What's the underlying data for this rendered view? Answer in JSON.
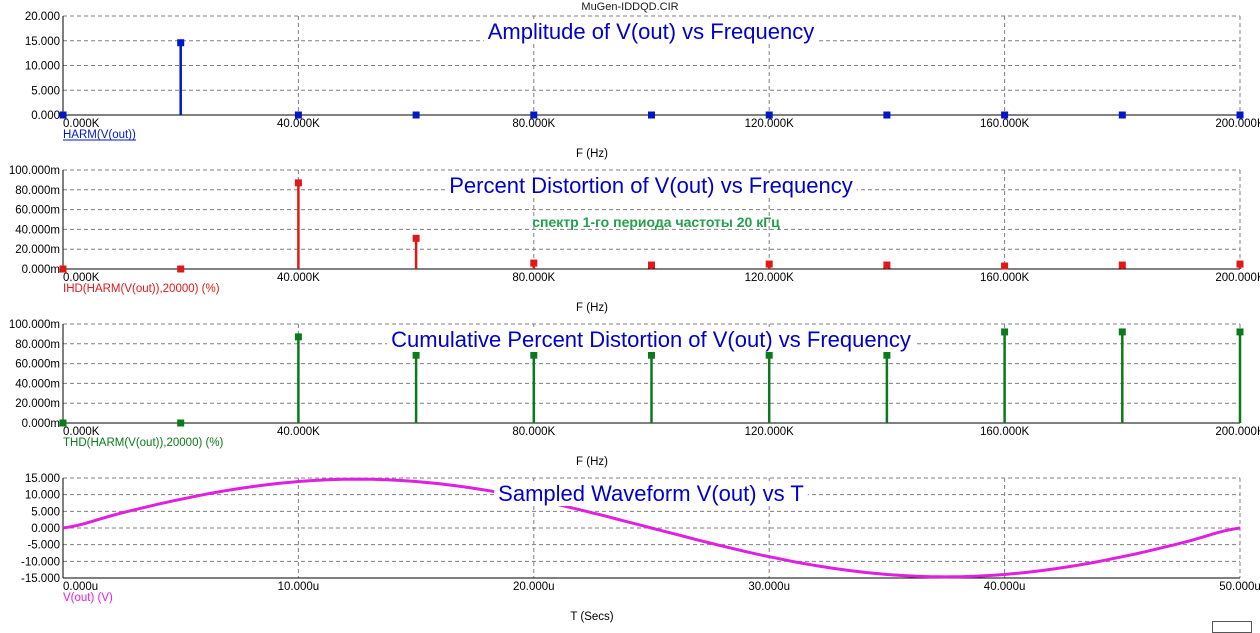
{
  "window": {
    "file_title": "MuGen-IDDQD.CIR"
  },
  "colors": {
    "background": "#ffffff",
    "grid": "#7f7f7f",
    "title_blue": "#0000c8",
    "annotation_green": "#23a04a",
    "axis_text": "#000000"
  },
  "chart_data": [
    {
      "type": "bar",
      "title": "Amplitude of V(out) vs Frequency",
      "xlabel": "F (Hz)",
      "series_label": "HARM(V(out))",
      "color": "#0018c8",
      "x_unit": "Hz",
      "xlim": [
        0,
        200000
      ],
      "ylim": [
        0,
        20
      ],
      "x_ticks": [
        0,
        40000,
        80000,
        120000,
        160000,
        200000
      ],
      "x_tick_labels": [
        "0.000K",
        "40.000K",
        "80.000K",
        "120.000K",
        "160.000K",
        "200.000K"
      ],
      "y_ticks": [
        0,
        5,
        10,
        15,
        20
      ],
      "y_tick_labels": [
        "0.000",
        "5.000",
        "10.000",
        "15.000",
        "20.000"
      ],
      "x": [
        0,
        20000,
        40000,
        60000,
        80000,
        100000,
        120000,
        140000,
        160000,
        180000,
        200000
      ],
      "values": [
        0,
        14.6,
        0,
        0,
        0,
        0,
        0,
        0,
        0,
        0,
        0
      ],
      "grid": true
    },
    {
      "type": "bar",
      "title": "Percent Distortion of V(out) vs Frequency",
      "annotation": "спектр 1-го периода частоты 20 кГц",
      "xlabel": "F (Hz)",
      "series_label": "IHD(HARM(V(out)),20000) (%)",
      "color": "#e01818",
      "x_unit": "Hz",
      "xlim": [
        0,
        200000
      ],
      "ylim": [
        0,
        0.1
      ],
      "x_ticks": [
        0,
        40000,
        80000,
        120000,
        160000,
        200000
      ],
      "x_tick_labels": [
        "0.000K",
        "40.000K",
        "80.000K",
        "120.000K",
        "160.000K",
        "200.000K"
      ],
      "y_ticks": [
        0,
        0.02,
        0.04,
        0.06,
        0.08,
        0.1
      ],
      "y_tick_labels": [
        "0.000m",
        "20.000m",
        "40.000m",
        "60.000m",
        "80.000m",
        "100.000m"
      ],
      "x": [
        0,
        20000,
        40000,
        60000,
        80000,
        100000,
        120000,
        140000,
        160000,
        180000,
        200000
      ],
      "values": [
        0,
        0,
        0.087,
        0.031,
        0.006,
        0.004,
        0.005,
        0.004,
        0.003,
        0.004,
        0.005
      ],
      "grid": true
    },
    {
      "type": "bar",
      "title": "Cumulative Percent Distortion of V(out) vs Frequency",
      "xlabel": "F (Hz)",
      "series_label": "THD(HARM(V(out)),20000) (%)",
      "color": "#0a7a1a",
      "x_unit": "Hz",
      "xlim": [
        0,
        200000
      ],
      "ylim": [
        0,
        0.1
      ],
      "x_ticks": [
        0,
        40000,
        80000,
        120000,
        160000,
        200000
      ],
      "x_tick_labels": [
        "0.000K",
        "40.000K",
        "80.000K",
        "120.000K",
        "160.000K",
        "200.000K"
      ],
      "y_ticks": [
        0,
        0.02,
        0.04,
        0.06,
        0.08,
        0.1
      ],
      "y_tick_labels": [
        "0.000m",
        "20.000m",
        "40.000m",
        "60.000m",
        "80.000m",
        "100.000m"
      ],
      "x": [
        0,
        20000,
        40000,
        60000,
        80000,
        100000,
        120000,
        140000,
        160000,
        180000,
        200000
      ],
      "values": [
        0,
        0,
        0.087,
        0.0685,
        0.0685,
        0.0685,
        0.0685,
        0.0685,
        0.092,
        0.092,
        0.092
      ],
      "grid": true
    },
    {
      "type": "line",
      "title": "Sampled Waveform  V(out) vs T",
      "xlabel": "T (Secs)",
      "series_label": "V(out) (V)",
      "color": "#e020e0",
      "x_unit": "s",
      "xlim": [
        0,
        5e-05
      ],
      "ylim": [
        -15,
        15
      ],
      "x_ticks": [
        0,
        1e-05,
        2e-05,
        3e-05,
        4e-05,
        5e-05
      ],
      "x_tick_labels": [
        "0.000u",
        "10.000u",
        "20.000u",
        "30.000u",
        "40.000u",
        "50.000u"
      ],
      "y_ticks": [
        -15,
        -10,
        -5,
        0,
        5,
        10,
        15
      ],
      "y_tick_labels": [
        "-15.000",
        "-10.000",
        "-5.000",
        "0.000",
        "5.000",
        "10.000",
        "15.000"
      ],
      "x": [
        0,
        2.5e-06,
        5e-06,
        7.5e-06,
        1e-05,
        1.25e-05,
        1.5e-05,
        1.75e-05,
        2e-05,
        2.25e-05,
        2.5e-05,
        2.75e-05,
        3e-05,
        3.25e-05,
        3.5e-05,
        3.75e-05,
        4e-05,
        4.25e-05,
        4.5e-05,
        4.75e-05,
        5e-05
      ],
      "values": [
        0,
        4.53,
        8.62,
        11.86,
        13.94,
        14.66,
        13.94,
        11.86,
        8.62,
        4.53,
        0,
        -4.53,
        -8.62,
        -11.86,
        -13.94,
        -14.66,
        -13.94,
        -11.86,
        -8.62,
        -4.53,
        0
      ],
      "grid": true
    }
  ]
}
